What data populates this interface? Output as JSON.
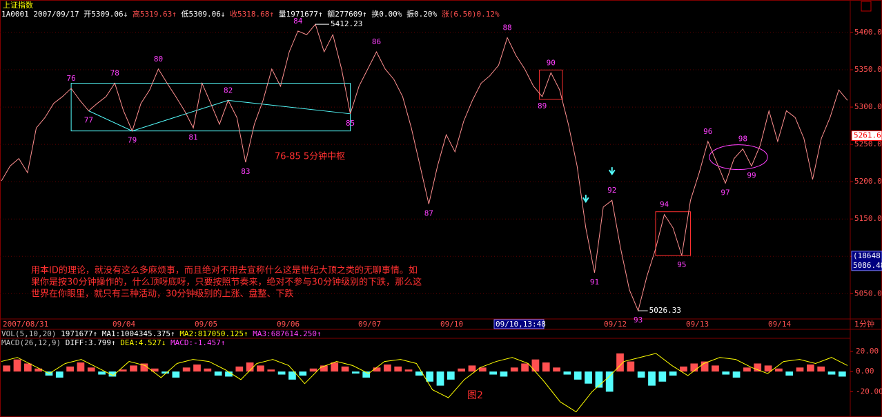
{
  "header": {
    "title": "上证指数",
    "quote": [
      {
        "text": "1A0001",
        "color": "#ffffff"
      },
      {
        "text": "2007/09/17",
        "color": "#ffffff"
      },
      {
        "text": "开5309.06↓",
        "color": "#ffffff"
      },
      {
        "text": "高5319.63↑",
        "color": "#ff5050"
      },
      {
        "text": "低5309.06↓",
        "color": "#ffffff"
      },
      {
        "text": "收5318.68↑",
        "color": "#ff5050"
      },
      {
        "text": "量1971677↑",
        "color": "#ffffff"
      },
      {
        "text": "额277609↑",
        "color": "#ffffff"
      },
      {
        "text": "换0.00%",
        "color": "#ffffff"
      },
      {
        "text": "振0.20%",
        "color": "#ffffff"
      },
      {
        "text": "涨(6.50)0.12%",
        "color": "#ff5050"
      }
    ],
    "vol_line": [
      {
        "text": "VOL(5,10,20)",
        "color": "#c0c0c0"
      },
      {
        "text": "1971677↑",
        "color": "#ffffff"
      },
      {
        "text": "MA1:1004345.375↑",
        "color": "#ffffff"
      },
      {
        "text": "MA2:817050.125↑",
        "color": "#ffff00"
      },
      {
        "text": "MA3:687614.250↑",
        "color": "#ff40ff"
      }
    ],
    "macd_line": [
      {
        "text": "MACD(26,12,9)",
        "color": "#c0c0c0"
      },
      {
        "text": "DIFF:3.799↑",
        "color": "#ffffff"
      },
      {
        "text": "DEA:4.527↓",
        "color": "#ffff00"
      },
      {
        "text": "MACD:-1.457↑",
        "color": "#ff40ff"
      }
    ]
  },
  "chart_data": [
    {
      "type": "line",
      "x_labels": [
        "2007/08/31",
        "09/04",
        "09/05",
        "09/06",
        "09/07",
        "09/10",
        "09/10,13:48",
        "09/12",
        "09/13",
        "09/14"
      ],
      "period_label": "1分钟",
      "color": "#ff9090",
      "values": [
        5201,
        5221,
        5231,
        5212,
        5272,
        5286,
        5305,
        5314,
        5325,
        5309,
        5295,
        5305,
        5314,
        5332,
        5295,
        5268,
        5305,
        5323,
        5351,
        5332,
        5314,
        5295,
        5272,
        5332,
        5305,
        5277,
        5309,
        5286,
        5226,
        5277,
        5309,
        5351,
        5328,
        5374,
        5402,
        5397,
        5411,
        5374,
        5397,
        5351,
        5291,
        5328,
        5351,
        5374,
        5351,
        5337,
        5314,
        5272,
        5221,
        5170,
        5221,
        5263,
        5240,
        5281,
        5309,
        5332,
        5342,
        5356,
        5393,
        5369,
        5351,
        5328,
        5314,
        5346,
        5323,
        5277,
        5221,
        5138,
        5078,
        5166,
        5175,
        5110,
        5055,
        5027,
        5073,
        5110,
        5156,
        5138,
        5101,
        5175,
        5212,
        5254,
        5226,
        5198,
        5231,
        5244,
        5221,
        5249,
        5295,
        5254,
        5295,
        5286,
        5258,
        5203,
        5258,
        5286,
        5323,
        5309
      ],
      "ylim": [
        5016,
        5425
      ],
      "yticks": [
        {
          "value": 5400,
          "label": "5400.00"
        },
        {
          "value": 5350,
          "label": "5350.00"
        },
        {
          "value": 5300,
          "label": "5300.00"
        },
        {
          "value": 5250,
          "label": "5250.00"
        },
        {
          "value": 5200,
          "label": "5200.00"
        },
        {
          "value": 5150,
          "label": "5150.00"
        },
        {
          "value": 5100,
          "label": "5100.00"
        },
        {
          "value": 5050,
          "label": "5050.00"
        }
      ],
      "grid": true,
      "wave_labels": [
        "76",
        "77",
        "78",
        "79",
        "80",
        "81",
        "82",
        "83",
        "84",
        "85",
        "86",
        "87",
        "88",
        "89",
        "90",
        "91",
        "92",
        "93",
        "94",
        "95",
        "96",
        "97",
        "98",
        "99"
      ],
      "high_label": 5412.23,
      "low_label": 5026.33,
      "last_price": 5261.6,
      "cursor_volume": {
        "value": 18648,
        "label": "(18648)"
      },
      "cursor_price": 5086.48,
      "note": "76-85 5分钟中枢",
      "text_lines": [
        "用本ID的理论，就没有这么多麻烦事，而且绝对不用去宣称什么这是世纪大顶之类的无聊事情。如",
        "果你是按30分钟操作的，什么顶呀底呀，只要按照节奏来，绝对不参与30分钟级别的下跌，那么这",
        "世界在你眼里，就只有三种活动，30分钟级别的上涨、盘整、下跌"
      ]
    },
    {
      "type": "macd",
      "up_color": "#ff5050",
      "down_color": "#54fcfc",
      "values": [
        6,
        12,
        8,
        3,
        -4,
        -6,
        5,
        9,
        4,
        -3,
        -5,
        2,
        6,
        8,
        3,
        -2,
        -6,
        4,
        7,
        3,
        -4,
        -5,
        5,
        9,
        6,
        2,
        -3,
        -8,
        -4,
        3,
        6,
        9,
        5,
        -2,
        -6,
        4,
        7,
        5,
        2,
        -4,
        -10,
        -14,
        -8,
        3,
        6,
        4,
        -3,
        -5,
        4,
        8,
        12,
        9,
        4,
        -3,
        -8,
        -12,
        -16,
        -20,
        18,
        10,
        -6,
        -14,
        -10,
        -4,
        5,
        8,
        10,
        6,
        -3,
        -6,
        4,
        8,
        6,
        3,
        -4,
        4,
        7,
        5,
        -3,
        -5
      ],
      "diff": {
        "color": "#ffff00",
        "values": [
          10,
          14,
          6,
          -2,
          8,
          12,
          4,
          -4,
          10,
          6,
          -6,
          8,
          12,
          10,
          2,
          -8,
          8,
          12,
          6,
          -12,
          4,
          10,
          6,
          -2,
          10,
          12,
          8,
          -18,
          -26,
          -8,
          4,
          10,
          14,
          8,
          -10,
          -30,
          -40,
          -20,
          -6,
          10,
          14,
          18,
          6,
          -4,
          8,
          14,
          12,
          4,
          -2,
          10,
          12,
          8,
          14,
          6
        ]
      },
      "ylim": [
        -41,
        33
      ],
      "yticks": [
        {
          "value": 20,
          "label": "20.00"
        },
        {
          "value": 0,
          "label": "0.00"
        },
        {
          "value": -20,
          "label": "-20.00"
        }
      ],
      "caption": "图2"
    }
  ]
}
